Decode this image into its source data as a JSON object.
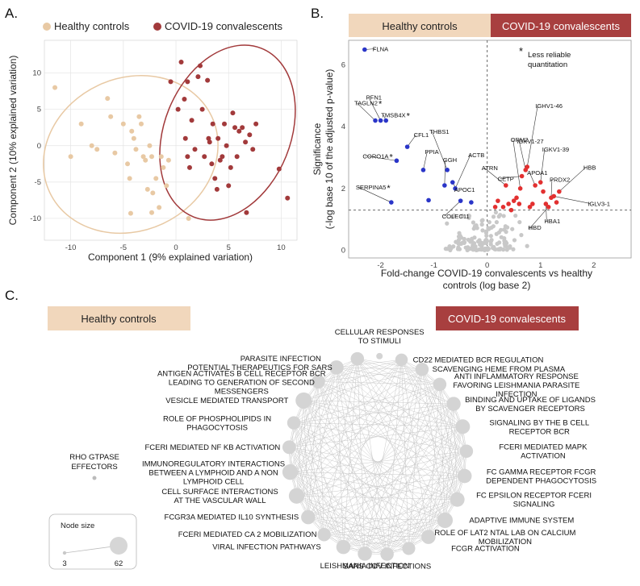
{
  "panels": {
    "a_letter": "A.",
    "b_letter": "B.",
    "c_letter": "C."
  },
  "colors": {
    "healthy": "#E8C9A4",
    "covid": "#A23A3B",
    "healthy_banner": "#F1D7BC",
    "covid_banner": "#A83F3F",
    "down": "#2A35C8",
    "up": "#E23030",
    "ns": "#C8C8C8",
    "panel_bg": "#FFFFFF",
    "grid": "#E4E4E4"
  },
  "chart_data": [
    {
      "id": "pca",
      "type": "scatter",
      "xlabel": "Component 1 (9% explained variation)",
      "ylabel": "Component 2 (10% explained variation)",
      "xlim": [
        -12.5,
        11.5
      ],
      "ylim": [
        -13,
        14.5
      ],
      "xticks": [
        -10,
        -5,
        0,
        5,
        10
      ],
      "yticks": [
        -10,
        -5,
        0,
        5,
        10
      ],
      "legend": {
        "position": "top",
        "entries": [
          "Healthy controls",
          "COVID-19 convalescents"
        ]
      },
      "series": [
        {
          "name": "Healthy controls",
          "points": [
            [
              -11.5,
              8
            ],
            [
              -10,
              -1.5
            ],
            [
              -9,
              3
            ],
            [
              -8,
              0
            ],
            [
              -7.5,
              -0.5
            ],
            [
              -6.5,
              6.5
            ],
            [
              -6.2,
              4
            ],
            [
              -5.8,
              -1
            ],
            [
              -5,
              3
            ],
            [
              -4.6,
              -2.5
            ],
            [
              -4.4,
              -4.5
            ],
            [
              -4.2,
              2
            ],
            [
              -4,
              1
            ],
            [
              -3.8,
              -0.5
            ],
            [
              -3.5,
              4
            ],
            [
              -3.3,
              3
            ],
            [
              -3.1,
              -1.5
            ],
            [
              -2.9,
              -2
            ],
            [
              -2.7,
              -6
            ],
            [
              -2.5,
              0
            ],
            [
              -2.3,
              -1.5
            ],
            [
              -2.2,
              -6.5
            ],
            [
              -1.9,
              -4.5
            ],
            [
              -1.6,
              -8.5
            ],
            [
              -1.4,
              -1.5
            ],
            [
              -1.2,
              -3
            ],
            [
              -0.9,
              -5.5
            ],
            [
              -0.7,
              -2
            ],
            [
              1.2,
              -10
            ],
            [
              -4.3,
              -9.3
            ],
            [
              -2.3,
              -9.2
            ]
          ],
          "ellipse": {
            "cx": -4.3,
            "cy": -1.2,
            "rx": 8.5,
            "ry": 10.5,
            "angle": -25
          }
        },
        {
          "name": "COVID-19 convalescents",
          "points": [
            [
              -0.5,
              8.8
            ],
            [
              0.2,
              5
            ],
            [
              0.5,
              11.5
            ],
            [
              0.8,
              6.4
            ],
            [
              1.1,
              8.8
            ],
            [
              1.3,
              -3
            ],
            [
              1.5,
              3.5
            ],
            [
              1.8,
              -0.5
            ],
            [
              2.1,
              9.5
            ],
            [
              2.3,
              11
            ],
            [
              2.5,
              5
            ],
            [
              2.7,
              -1.5
            ],
            [
              3,
              9
            ],
            [
              3.1,
              1
            ],
            [
              3.2,
              0.5
            ],
            [
              3.4,
              -2.5
            ],
            [
              3.5,
              3
            ],
            [
              3.7,
              -4.5
            ],
            [
              3.9,
              -6
            ],
            [
              4,
              1
            ],
            [
              4.2,
              -2
            ],
            [
              4.4,
              -1.5
            ],
            [
              4.6,
              3
            ],
            [
              4.8,
              0
            ],
            [
              5,
              -5.5
            ],
            [
              5.2,
              -3
            ],
            [
              5.4,
              4.5
            ],
            [
              5.6,
              2.5
            ],
            [
              5.8,
              -1.5
            ],
            [
              6,
              2
            ],
            [
              6.3,
              2.5
            ],
            [
              6.6,
              0.5
            ],
            [
              7,
              1.5
            ],
            [
              7.3,
              -0.5
            ],
            [
              7.6,
              3
            ],
            [
              9.8,
              -3.2
            ],
            [
              10.6,
              -7.2
            ],
            [
              6.7,
              -9.2
            ],
            [
              0.9,
              1
            ],
            [
              1.1,
              -1.5
            ]
          ],
          "ellipse": {
            "cx": 4.9,
            "cy": 1.8,
            "rx": 6.0,
            "ry": 12.5,
            "angle": 22
          }
        }
      ]
    },
    {
      "id": "volcano",
      "type": "scatter",
      "xlabel": "Fold-change COVID-19 convalescents vs healthy controls (log base 2)",
      "ylabel": "Significance (-log base 10 of the adjusted p-value)",
      "xlim": [
        -2.6,
        2.7
      ],
      "ylim": [
        -0.25,
        6.8
      ],
      "xticks": [
        -2,
        -1,
        0,
        1,
        2
      ],
      "yticks": [
        0,
        2,
        4,
        6
      ],
      "threshold_y": 1.3,
      "threshold_x": 0,
      "banner": {
        "left": "Healthy controls",
        "right": "COVID-19 convalescents"
      },
      "note": {
        "star": "*",
        "line1": "Less reliable",
        "line2": "quantitation"
      },
      "down_points": [
        [
          -2.3,
          6.5
        ],
        [
          -2.1,
          4.2
        ],
        [
          -2.0,
          4.2
        ],
        [
          -1.9,
          4.2
        ],
        [
          -1.7,
          2.9
        ],
        [
          -1.5,
          3.35
        ],
        [
          -1.2,
          2.6
        ],
        [
          -1.8,
          1.55
        ],
        [
          -1.1,
          1.62
        ],
        [
          -0.8,
          2.1
        ],
        [
          -0.65,
          2.2
        ],
        [
          -0.5,
          1.6
        ],
        [
          -0.3,
          1.55
        ],
        [
          -0.6,
          2.0
        ],
        [
          -0.75,
          2.6
        ]
      ],
      "up_points": [
        [
          0.15,
          1.4
        ],
        [
          0.2,
          1.6
        ],
        [
          0.3,
          1.4
        ],
        [
          0.35,
          2.1
        ],
        [
          0.4,
          1.5
        ],
        [
          0.45,
          1.3
        ],
        [
          0.5,
          1.6
        ],
        [
          0.55,
          1.7
        ],
        [
          0.6,
          1.5
        ],
        [
          0.62,
          2.0
        ],
        [
          0.65,
          2.4
        ],
        [
          0.72,
          2.6
        ],
        [
          0.75,
          2.7
        ],
        [
          0.8,
          1.4
        ],
        [
          0.85,
          1.5
        ],
        [
          0.9,
          2.1
        ],
        [
          1.0,
          2.2
        ],
        [
          1.05,
          1.9
        ],
        [
          1.1,
          1.5
        ],
        [
          1.15,
          1.4
        ],
        [
          1.2,
          1.7
        ],
        [
          1.25,
          1.75
        ],
        [
          1.3,
          1.55
        ],
        [
          1.35,
          1.9
        ]
      ],
      "labels": [
        {
          "text": "FLNA",
          "x": -2.3,
          "y": 6.5,
          "star": false
        },
        {
          "text": "TAGLN2",
          "x": -2.1,
          "y": 4.2,
          "star": true
        },
        {
          "text": "PFN1",
          "x": -2.0,
          "y": 4.2,
          "star": false
        },
        {
          "text": "TMSB4X",
          "x": -1.9,
          "y": 4.2,
          "star": true
        },
        {
          "text": "CFL1",
          "x": -1.5,
          "y": 3.35,
          "star": false
        },
        {
          "text": "CORO1A",
          "x": -1.7,
          "y": 2.9,
          "star": true
        },
        {
          "text": "PPIA",
          "x": -1.2,
          "y": 2.6,
          "star": false
        },
        {
          "text": "THBS1",
          "x": -0.75,
          "y": 2.6,
          "star": false
        },
        {
          "text": "GGH",
          "x": -0.8,
          "y": 2.1,
          "star": false
        },
        {
          "text": "ACTB",
          "x": -0.6,
          "y": 2.0,
          "star": false
        },
        {
          "text": "APOC1",
          "x": -0.65,
          "y": 2.2,
          "star": false
        },
        {
          "text": "SERPINA5",
          "x": -1.8,
          "y": 1.55,
          "star": true
        },
        {
          "text": "COLEC11",
          "x": -0.5,
          "y": 1.6,
          "star": false
        },
        {
          "text": "ATRN",
          "x": 0.35,
          "y": 2.1,
          "star": false
        },
        {
          "text": "ORM2",
          "x": 0.62,
          "y": 2.0,
          "star": false
        },
        {
          "text": "CETP",
          "x": 0.65,
          "y": 2.4,
          "star": false
        },
        {
          "text": "IGKV1-27",
          "x": 0.72,
          "y": 2.6,
          "star": false
        },
        {
          "text": "IGHV1-46",
          "x": 0.75,
          "y": 2.7,
          "star": false
        },
        {
          "text": "APOA1",
          "x": 0.9,
          "y": 2.1,
          "star": false
        },
        {
          "text": "IGKV1-39",
          "x": 1.0,
          "y": 2.2,
          "star": false
        },
        {
          "text": "PRDX2",
          "x": 1.2,
          "y": 1.7,
          "star": false
        },
        {
          "text": "HBB",
          "x": 1.35,
          "y": 1.9,
          "star": false
        },
        {
          "text": "IGLV3-1",
          "x": 1.25,
          "y": 1.75,
          "star": false
        },
        {
          "text": "HBA1",
          "x": 1.1,
          "y": 1.5,
          "star": false
        },
        {
          "text": "HBD",
          "x": 1.15,
          "y": 1.4,
          "star": false
        }
      ]
    },
    {
      "id": "network",
      "type": "network",
      "banner": {
        "left": "Healthy controls",
        "right": "COVID-19 convalescents"
      },
      "size_legend": {
        "title": "Node size",
        "min": "3",
        "max": "62"
      },
      "isolated_node": {
        "label": [
          "RHO GTPASE",
          "EFFECTORS"
        ],
        "size": 3
      },
      "nodes": [
        {
          "label": [
            "CELLULAR RESPONSES",
            "TO STIMULI"
          ],
          "size": 3
        },
        {
          "label": [
            "CD22 MEDIATED BCR REGULATION"
          ],
          "size": 25
        },
        {
          "label": [
            "SCAVENGING HEME FROM PLASMA"
          ],
          "size": 30
        },
        {
          "label": [
            "ANTI INFLAMMATORY RESPONSE",
            "FAVORING LEISHMANIA PARASITE",
            "INFECTION"
          ],
          "size": 30
        },
        {
          "label": [
            "BINDING AND UPTAKE OF LIGANDS",
            "BY SCAVENGER RECEPTORS"
          ],
          "size": 35
        },
        {
          "label": [
            "SIGNALING BY THE B CELL",
            "RECEPTOR BCR"
          ],
          "size": 38
        },
        {
          "label": [
            "FCERI MEDIATED MAPK",
            "ACTIVATION"
          ],
          "size": 30
        },
        {
          "label": [
            "FC GAMMA RECEPTOR FCGR",
            "DEPENDENT PHAGOCYTOSIS"
          ],
          "size": 36
        },
        {
          "label": [
            "FC EPSILON RECEPTOR FCERI",
            "SIGNALING"
          ],
          "size": 38
        },
        {
          "label": [
            "ADAPTIVE IMMUNE SYSTEM"
          ],
          "size": 45
        },
        {
          "label": [
            "ROLE OF LAT2 NTAL LAB ON CALCIUM",
            "MOBILIZATION"
          ],
          "size": 35
        },
        {
          "label": [
            "FCGR ACTIVATION"
          ],
          "size": 28
        },
        {
          "label": [
            "SARS COV INFECTIONS"
          ],
          "size": 30
        },
        {
          "label": [
            "LEISHMANIA INFECTION"
          ],
          "size": 35
        },
        {
          "label": [
            "VIRAL INFECTION PATHWAYS"
          ],
          "size": 35
        },
        {
          "label": [
            "FCERI MEDIATED CA 2 MOBILIZATION"
          ],
          "size": 30
        },
        {
          "label": [
            "FCGR3A MEDIATED IL10 SYNTHESIS"
          ],
          "size": 35
        },
        {
          "label": [
            "CELL SURFACE INTERACTIONS",
            "AT THE VASCULAR WALL"
          ],
          "size": 45
        },
        {
          "label": [
            "IMMUNOREGULATORY INTERACTIONS",
            "BETWEEN A LYMPHOID AND A NON",
            "LYMPHOID CELL"
          ],
          "size": 45
        },
        {
          "label": [
            "FCERI MEDIATED NF KB ACTIVATION"
          ],
          "size": 32
        },
        {
          "label": [
            "ROLE OF PHOSPHOLIPIDS IN",
            "PHAGOCYTOSIS"
          ],
          "size": 30
        },
        {
          "label": [
            "VESICLE MEDIATED TRANSPORT"
          ],
          "size": 50
        },
        {
          "label": [
            "ANTIGEN ACTIVATES B CELL RECEPTOR BCR",
            "LEADING TO GENERATION OF SECOND",
            "MESSENGERS"
          ],
          "size": 32
        },
        {
          "label": [
            "POTENTIAL THERAPEUTICS FOR SARS"
          ],
          "size": 35
        },
        {
          "label": [
            "PARASITE INFECTION"
          ],
          "size": 30
        }
      ]
    }
  ]
}
